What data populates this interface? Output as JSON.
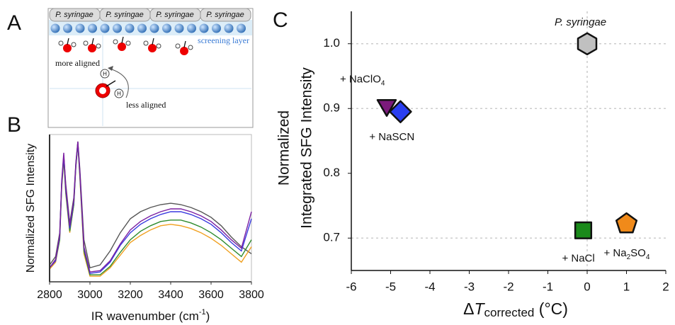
{
  "panels": {
    "a": "A",
    "b": "B",
    "c": "C"
  },
  "diagram": {
    "cap_label": "P. syringae",
    "layer_label": "screening layer",
    "more_label": "more aligned",
    "less_label": "less aligned",
    "h_label": "H"
  },
  "chart_data": [
    {
      "type": "line",
      "ylabel": "Normalized SFG Intensity",
      "xlabel": "IR wavenumber (cm",
      "xlabel_sup": "-1",
      "xlabel_end": ")",
      "x": [
        2800,
        2830,
        2850,
        2860,
        2870,
        2880,
        2900,
        2920,
        2930,
        2940,
        2950,
        2970,
        3000,
        3050,
        3100,
        3150,
        3200,
        3250,
        3300,
        3350,
        3400,
        3450,
        3500,
        3550,
        3600,
        3650,
        3700,
        3750,
        3800
      ],
      "xlim": [
        2800,
        3800
      ],
      "xticks": [
        2800,
        3000,
        3200,
        3400,
        3600,
        3800
      ],
      "ylim": [
        0,
        1.05
      ],
      "series": [
        {
          "color": "#555555",
          "values": [
            0.12,
            0.18,
            0.35,
            0.7,
            0.9,
            0.7,
            0.42,
            0.6,
            0.85,
            1.0,
            0.8,
            0.3,
            0.1,
            0.12,
            0.22,
            0.35,
            0.45,
            0.5,
            0.53,
            0.55,
            0.56,
            0.55,
            0.53,
            0.5,
            0.46,
            0.4,
            0.32,
            0.25,
            0.2
          ]
        },
        {
          "color": "#f0a020",
          "values": [
            0.09,
            0.14,
            0.3,
            0.67,
            0.87,
            0.63,
            0.35,
            0.55,
            0.82,
            0.98,
            0.74,
            0.2,
            0.04,
            0.04,
            0.1,
            0.19,
            0.28,
            0.33,
            0.37,
            0.4,
            0.41,
            0.4,
            0.38,
            0.35,
            0.31,
            0.26,
            0.2,
            0.14,
            0.25
          ]
        },
        {
          "color": "#2e8b2e",
          "values": [
            0.1,
            0.15,
            0.3,
            0.68,
            0.88,
            0.64,
            0.36,
            0.55,
            0.82,
            0.98,
            0.75,
            0.22,
            0.05,
            0.05,
            0.11,
            0.21,
            0.3,
            0.36,
            0.4,
            0.43,
            0.44,
            0.44,
            0.42,
            0.39,
            0.35,
            0.3,
            0.24,
            0.18,
            0.3
          ]
        },
        {
          "color": "#3a3adf",
          "values": [
            0.1,
            0.15,
            0.32,
            0.7,
            0.9,
            0.66,
            0.38,
            0.57,
            0.83,
            0.99,
            0.77,
            0.24,
            0.06,
            0.07,
            0.14,
            0.26,
            0.35,
            0.41,
            0.45,
            0.48,
            0.5,
            0.5,
            0.48,
            0.45,
            0.41,
            0.35,
            0.28,
            0.22,
            0.45
          ]
        },
        {
          "color": "#7b1fa2",
          "values": [
            0.1,
            0.16,
            0.33,
            0.72,
            0.92,
            0.68,
            0.4,
            0.58,
            0.84,
            1.0,
            0.78,
            0.25,
            0.07,
            0.08,
            0.15,
            0.27,
            0.37,
            0.43,
            0.47,
            0.5,
            0.52,
            0.52,
            0.5,
            0.47,
            0.43,
            0.37,
            0.3,
            0.24,
            0.5
          ]
        }
      ]
    },
    {
      "type": "scatter",
      "ylabel_lines": [
        "Normalized",
        "Integrated SFG Intensity"
      ],
      "xlabel_parts": [
        {
          "text": "Δ"
        },
        {
          "text": "T",
          "italic": true
        },
        {
          "text": "corrected",
          "sub": true
        },
        {
          "text": " (°C)"
        }
      ],
      "xlim": [
        -6,
        2
      ],
      "xticks": [
        -6,
        -5,
        -4,
        -3,
        -2,
        -1,
        0,
        1,
        2
      ],
      "ylim": [
        0.65,
        1.05
      ],
      "yticks": [
        0.7,
        0.8,
        0.9,
        {
          "value": 1,
          "label": "1.0"
        }
      ],
      "hlines": [
        0.7,
        0.9,
        1
      ],
      "vlines": [
        0
      ],
      "points": [
        {
          "x": 0,
          "y": 1.0,
          "marker": "hexagon",
          "color": "#c0c0c0",
          "label_parts": [
            {
              "text": "P. syringae",
              "italic": true
            }
          ]
        },
        {
          "x": -5.1,
          "y": 0.905,
          "marker": "triangle-down",
          "color": "#7b1a7b",
          "label_parts": [
            {
              "text": "+ NaClO"
            },
            {
              "text": "4",
              "sub": true
            }
          ]
        },
        {
          "x": -4.75,
          "y": 0.895,
          "marker": "diamond",
          "color": "#2a3ef0",
          "label_parts": [
            {
              "text": "+ NaSCN"
            }
          ]
        },
        {
          "x": -0.1,
          "y": 0.712,
          "marker": "square",
          "color": "#1a8a1a",
          "label_parts": [
            {
              "text": "+ NaCl"
            }
          ]
        },
        {
          "x": 1.0,
          "y": 0.722,
          "marker": "pentagon",
          "color": "#f08a1a",
          "label_parts": [
            {
              "text": "+ Na"
            },
            {
              "text": "2",
              "sub": true
            },
            {
              "text": "SO"
            },
            {
              "text": "4",
              "sub": true
            }
          ]
        }
      ]
    }
  ]
}
